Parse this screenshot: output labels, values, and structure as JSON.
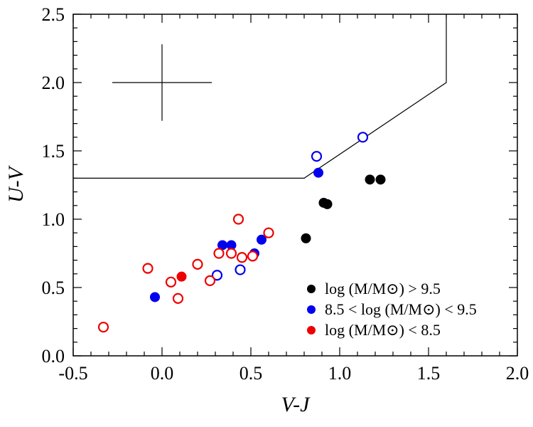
{
  "chart_data": {
    "type": "scatter",
    "title": "",
    "xlabel": "V-J",
    "ylabel": "U-V",
    "xlim": [
      -0.5,
      2.0
    ],
    "ylim": [
      0.0,
      2.5
    ],
    "x_ticks": [
      "-0.5",
      "0.0",
      "0.5",
      "1.0",
      "1.5",
      "2.0"
    ],
    "y_ticks": [
      "0.0",
      "0.5",
      "1.0",
      "1.5",
      "2.0",
      "2.5"
    ],
    "x_tick_values": [
      -0.5,
      0.0,
      0.5,
      1.0,
      1.5,
      2.0
    ],
    "y_tick_values": [
      0.0,
      0.5,
      1.0,
      1.5,
      2.0,
      2.5
    ],
    "grid": false,
    "legend_position": "bottom-right",
    "series": [
      {
        "name": "log (M/M⊙) > 9.5",
        "color": "#000000",
        "filled": [
          {
            "x": 0.81,
            "y": 0.86
          },
          {
            "x": 0.91,
            "y": 1.12
          },
          {
            "x": 0.93,
            "y": 1.11
          },
          {
            "x": 1.17,
            "y": 1.29
          },
          {
            "x": 1.23,
            "y": 1.29
          }
        ],
        "open": []
      },
      {
        "name": "8.5 < log (M/M⊙) < 9.5",
        "color": "#0000ee",
        "filled": [
          {
            "x": -0.04,
            "y": 0.43
          },
          {
            "x": 0.34,
            "y": 0.81
          },
          {
            "x": 0.39,
            "y": 0.81
          },
          {
            "x": 0.52,
            "y": 0.75
          },
          {
            "x": 0.56,
            "y": 0.85
          },
          {
            "x": 0.88,
            "y": 1.34
          }
        ],
        "open": [
          {
            "x": 0.31,
            "y": 0.59
          },
          {
            "x": 0.44,
            "y": 0.63
          },
          {
            "x": 0.87,
            "y": 1.46
          },
          {
            "x": 1.13,
            "y": 1.6
          }
        ]
      },
      {
        "name": "log (M/M⊙) < 8.5",
        "color": "#ee0000",
        "filled": [
          {
            "x": 0.11,
            "y": 0.58
          }
        ],
        "open": [
          {
            "x": -0.33,
            "y": 0.21
          },
          {
            "x": -0.08,
            "y": 0.64
          },
          {
            "x": 0.05,
            "y": 0.54
          },
          {
            "x": 0.09,
            "y": 0.42
          },
          {
            "x": 0.2,
            "y": 0.67
          },
          {
            "x": 0.27,
            "y": 0.55
          },
          {
            "x": 0.32,
            "y": 0.75
          },
          {
            "x": 0.39,
            "y": 0.75
          },
          {
            "x": 0.43,
            "y": 1.0
          },
          {
            "x": 0.45,
            "y": 0.72
          },
          {
            "x": 0.51,
            "y": 0.73
          },
          {
            "x": 0.6,
            "y": 0.9
          }
        ]
      }
    ],
    "boundary_line": [
      {
        "x": -0.5,
        "y": 1.3
      },
      {
        "x": 0.8,
        "y": 1.3
      },
      {
        "x": 1.6,
        "y": 2.0
      },
      {
        "x": 1.6,
        "y": 2.5
      }
    ],
    "error_bar": {
      "x": 0.0,
      "y": 2.0,
      "xerr": 0.28,
      "yerr": 0.28
    }
  }
}
